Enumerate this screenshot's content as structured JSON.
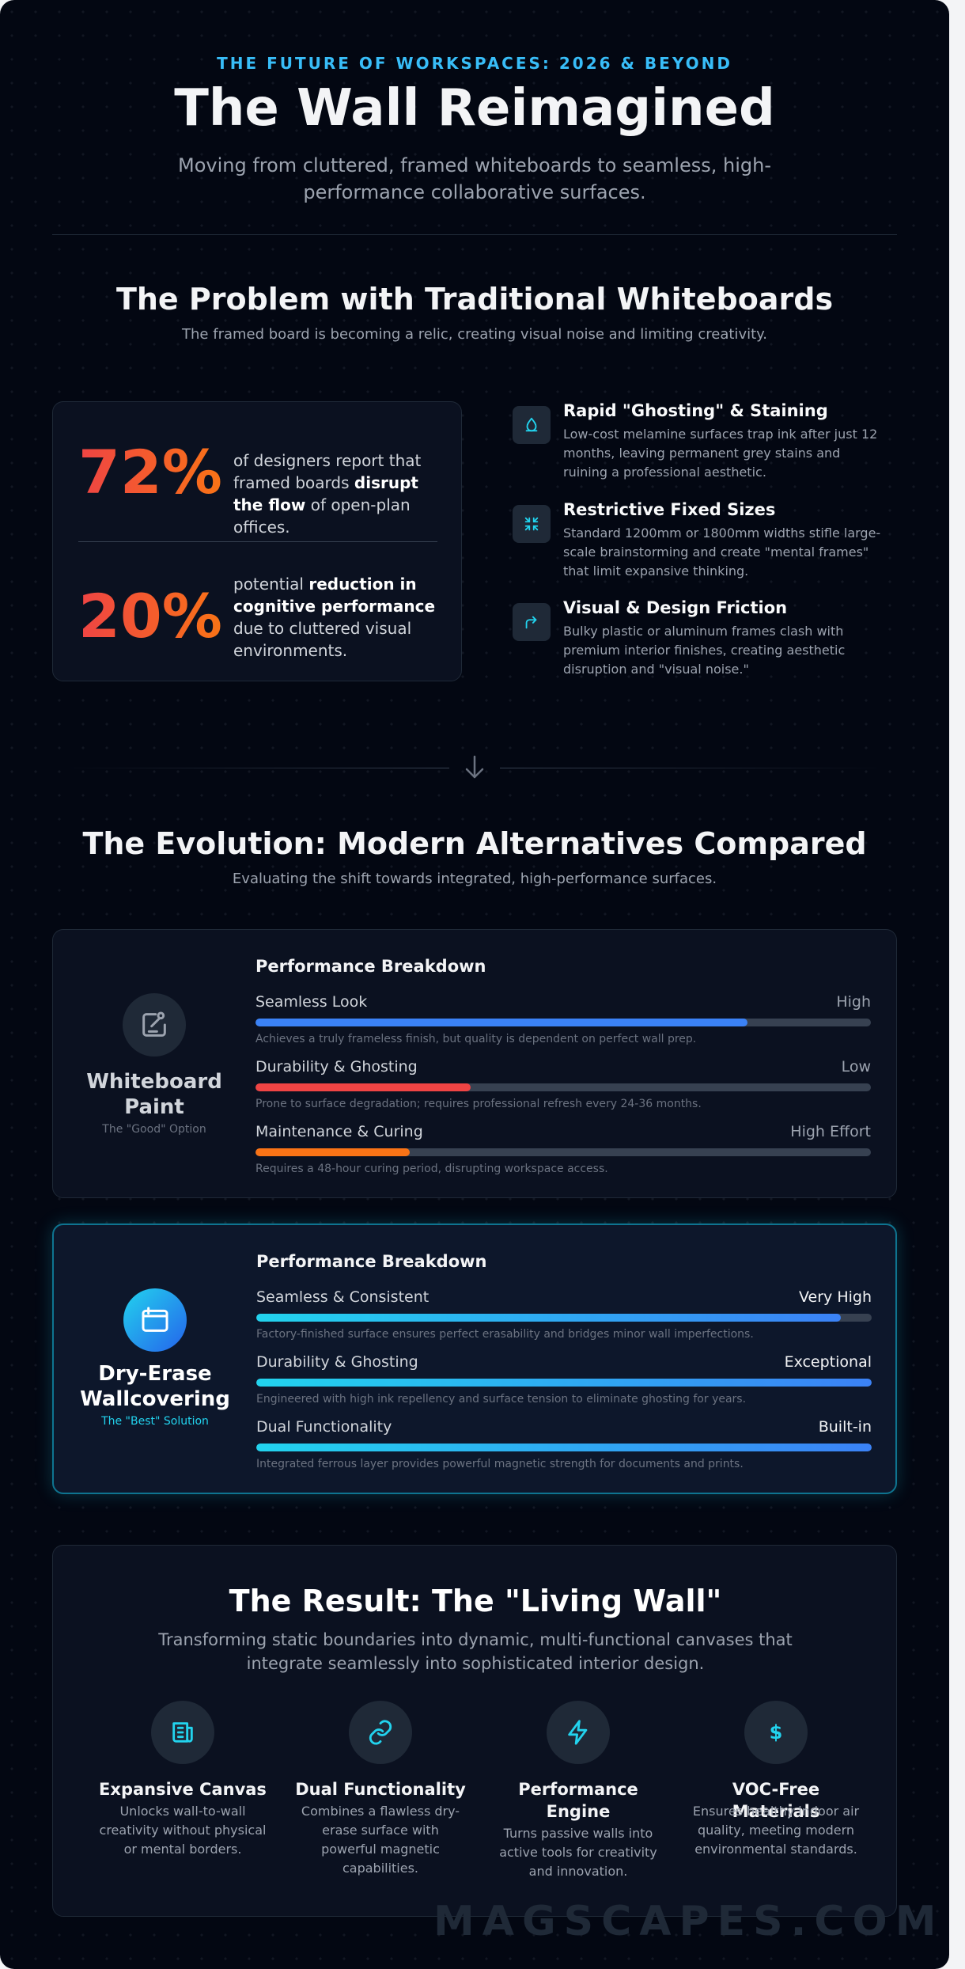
{
  "header": {
    "eyebrow": "THE FUTURE OF WORKSPACES: 2026 & BEYOND",
    "title": "The Wall Reimagined",
    "subtitle": "Moving from cluttered, framed whiteboards to seamless, high-performance collaborative surfaces."
  },
  "problem": {
    "title": "The Problem with Traditional Whiteboards",
    "subtitle": "The framed board is becoming a relic, creating visual noise and limiting creativity.",
    "stats": [
      {
        "value": "72%",
        "text_a": "of designers report that framed boards ",
        "text_b": "disrupt the flow",
        "text_c": " of open-plan offices."
      },
      {
        "value": "20%",
        "text_a": "potential ",
        "text_b": "reduction in cognitive performance",
        "text_c": " due to cluttered visual environments."
      }
    ],
    "issues": [
      {
        "icon": "stain-icon",
        "title": "Rapid \"Ghosting\" & Staining",
        "desc": "Low-cost melamine surfaces trap ink after just 12 months, leaving permanent grey stains and ruining a professional aesthetic."
      },
      {
        "icon": "shrink-icon",
        "title": "Restrictive Fixed Sizes",
        "desc": "Standard 1200mm or 1800mm widths stifle large-scale brainstorming and create \"mental frames\" that limit expansive thinking."
      },
      {
        "icon": "friction-icon",
        "title": "Visual & Design Friction",
        "desc": "Bulky plastic or aluminum frames clash with premium interior finishes, creating aesthetic disruption and \"visual noise.\""
      }
    ]
  },
  "evolution": {
    "title": "The Evolution: Modern Alternatives Compared",
    "subtitle": "Evaluating the shift towards integrated, high-performance surfaces.",
    "alternatives": [
      {
        "name_line1": "Whiteboard",
        "name_line2": "Paint",
        "tag": "The \"Good\" Option",
        "breakdown_title": "Performance Breakdown",
        "metrics": [
          {
            "label": "Seamless Look",
            "value": "High",
            "level": 0.8,
            "color": "#3b82f6",
            "desc": "Achieves a truly frameless finish, but quality is dependent on perfect wall prep."
          },
          {
            "label": "Durability & Ghosting",
            "value": "Low",
            "level": 0.35,
            "color": "#ef4444",
            "desc": "Prone to surface degradation; requires professional refresh every 24-36 months."
          },
          {
            "label": "Maintenance & Curing",
            "value": "High Effort",
            "level": 0.25,
            "color": "#f97316",
            "desc": "Requires a 48-hour curing period, disrupting workspace access."
          }
        ]
      },
      {
        "name_line1": "Dry-Erase",
        "name_line2": "Wallcovering",
        "tag": "The \"Best\" Solution",
        "breakdown_title": "Performance Breakdown",
        "metrics": [
          {
            "label": "Seamless & Consistent",
            "value": "Very High",
            "level": 0.95,
            "desc": "Factory-finished surface ensures perfect erasability and bridges minor wall imperfections."
          },
          {
            "label": "Durability & Ghosting",
            "value": "Exceptional",
            "level": 1.0,
            "desc": "Engineered with high ink repellency and surface tension to eliminate ghosting for years."
          },
          {
            "label": "Dual Functionality",
            "value": "Built-in",
            "level": 1.0,
            "desc": "Integrated ferrous layer provides powerful magnetic strength for documents and prints."
          }
        ]
      }
    ]
  },
  "result": {
    "title": "The Result: The \"Living Wall\"",
    "subtitle": "Transforming static boundaries into dynamic, multi-functional canvases that integrate seamlessly into sophisticated interior design.",
    "features": [
      {
        "icon": "document-icon",
        "title_l1": "Expansive Canvas",
        "title_l2": "",
        "desc": "Unlocks wall-to-wall creativity without physical or mental borders."
      },
      {
        "icon": "link-icon",
        "title_l1": "Dual Functionality",
        "title_l2": "",
        "desc": "Combines a flawless dry-erase surface with powerful magnetic capabilities."
      },
      {
        "icon": "lightning-icon",
        "title_l1": "Performance",
        "title_l2": "Engine",
        "desc": "Turns passive walls into active tools for creativity and innovation."
      },
      {
        "icon": "dollar-icon",
        "title_l1": "VOC-Free Materials",
        "title_l2": "",
        "desc": "Ensures healthy indoor air quality, meeting modern environmental standards."
      }
    ]
  },
  "watermark": "MAGSCAPES.COM",
  "colors": {
    "accent": "#38bdf8",
    "stat_gradient_start": "#ef4444",
    "stat_gradient_end": "#f97316",
    "best_border": "#0e7490"
  }
}
